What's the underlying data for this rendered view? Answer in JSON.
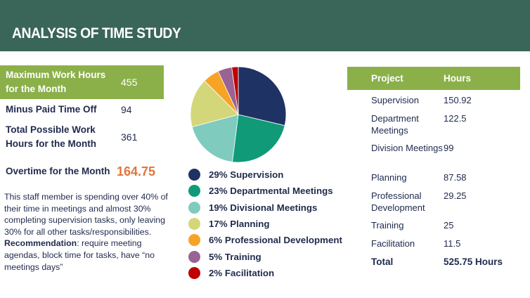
{
  "header": {
    "title": "ANALYSIS OF TIME STUDY"
  },
  "stats": [
    {
      "label": "Maximum Work Hours for the Month",
      "value": "455"
    },
    {
      "label": "Minus Paid Time Off",
      "value": "94"
    },
    {
      "label": "Total Possible Work Hours for the Month",
      "value": "361"
    },
    {
      "label": "Overtime for the Month",
      "value": "164.75"
    }
  ],
  "note": {
    "text": "This staff member is spending over 40% of their time in meetings and almost 30% completing supervision tasks, only leaving 30% for all other tasks/responsibilities.",
    "rec_label": "Recommendation",
    "rec_text": ": require meeting agendas, block time for tasks, have “no meetings days”"
  },
  "chart_data": {
    "type": "pie",
    "legend_position": "bottom",
    "slices": [
      {
        "label": "29% Supervision",
        "value": 150.92,
        "color": "#1f3264"
      },
      {
        "label": "23% Departmental Meetings",
        "value": 122.5,
        "color": "#109a78"
      },
      {
        "label": "19% Divisional Meetings",
        "value": 99,
        "color": "#7fcbbd"
      },
      {
        "label": "17% Planning",
        "value": 87.58,
        "color": "#d3d77a"
      },
      {
        "label": "6% Professional Development",
        "value": 29.25,
        "color": "#f7a324"
      },
      {
        "label": "5% Training",
        "value": 25,
        "color": "#996393"
      },
      {
        "label": "2% Facilitation",
        "value": 11.5,
        "color": "#c00000"
      }
    ]
  },
  "projects": {
    "headers": [
      "Project",
      "Hours"
    ],
    "rows": [
      [
        "Supervision",
        "150.92"
      ],
      [
        "Department Meetings",
        "122.5"
      ],
      [
        "Division Meetings",
        "99"
      ],
      [
        "Planning",
        "87.58"
      ],
      [
        "Professional Development",
        "29.25"
      ],
      [
        "Training",
        "25"
      ],
      [
        "Facilitation",
        "11.5"
      ]
    ],
    "total": [
      "Total",
      "525.75 Hours"
    ]
  }
}
